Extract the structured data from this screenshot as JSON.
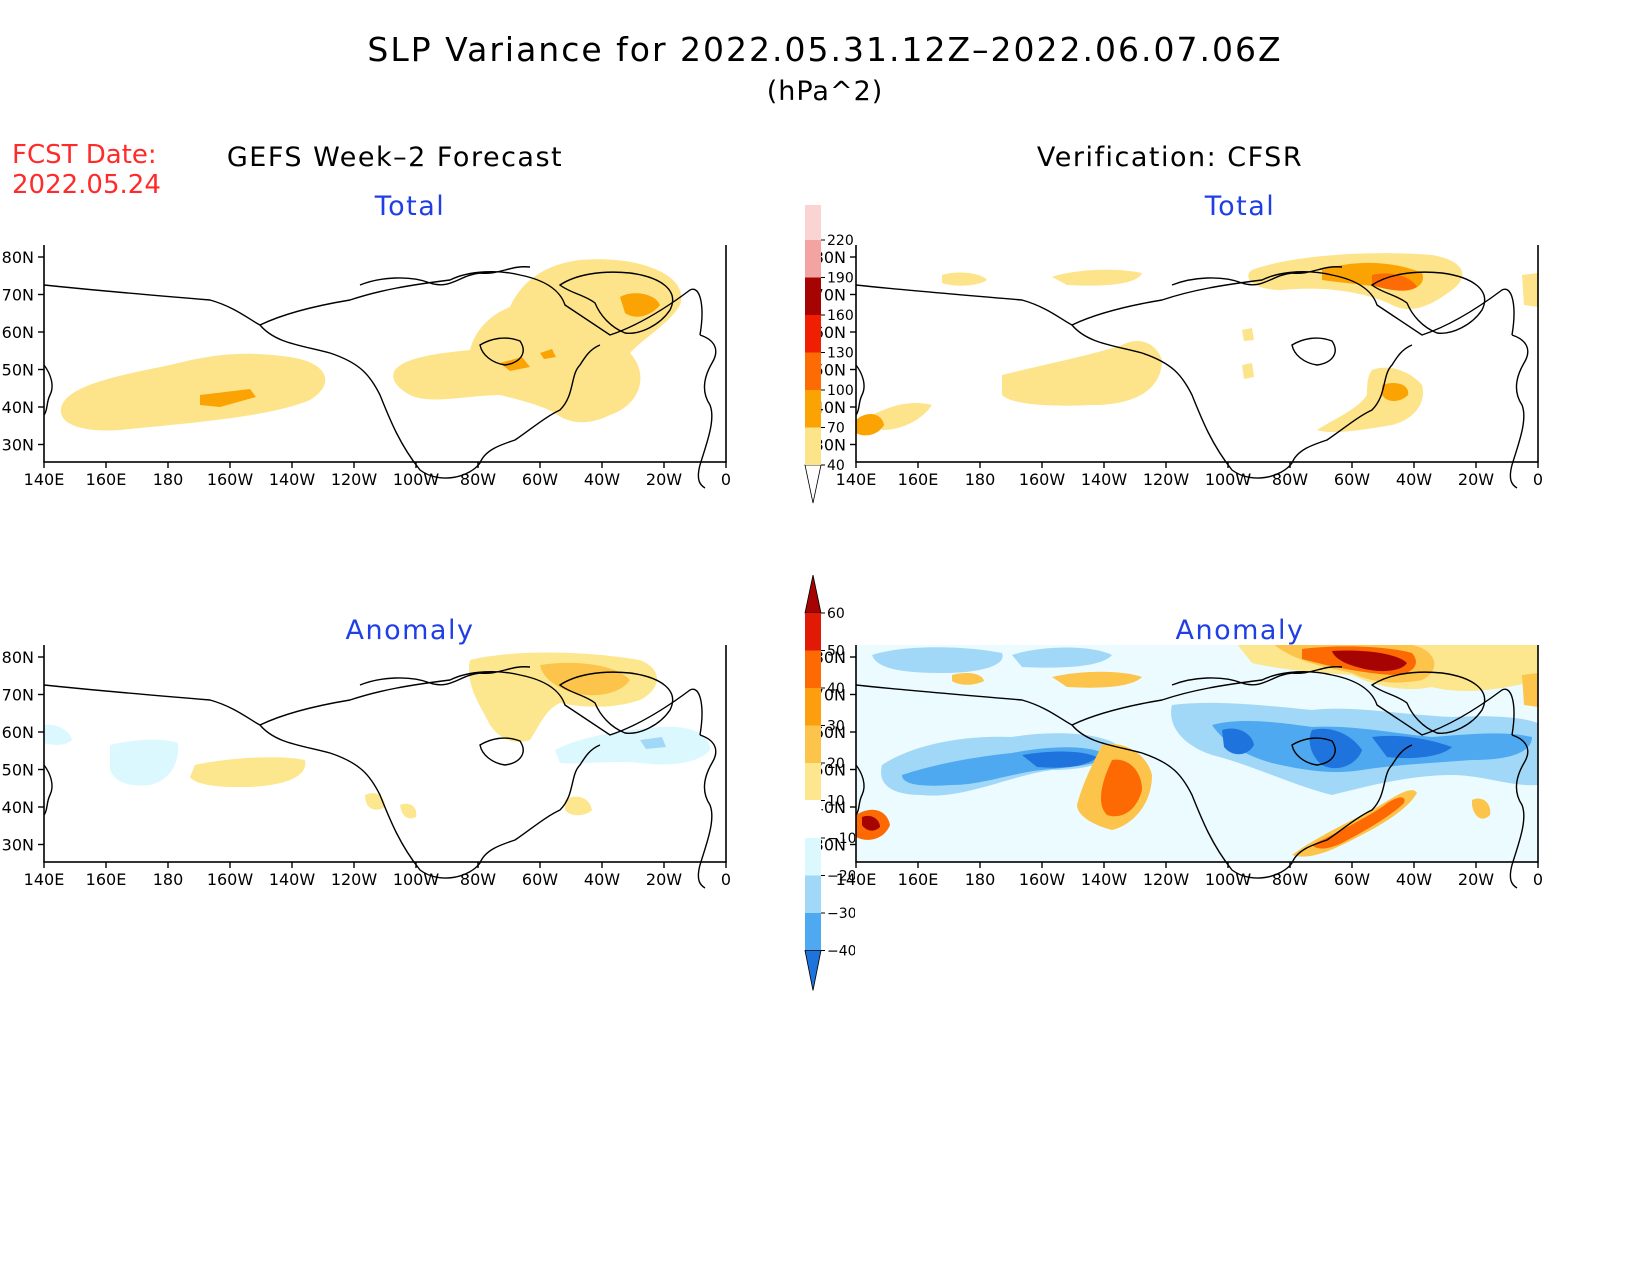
{
  "header": {
    "title": "SLP Variance for 2022.05.31.12Z–2022.06.07.06Z",
    "units": "(hPa^2)",
    "fcst_label": "FCST Date:",
    "fcst_date": "2022.05.24",
    "left_heading": "GEFS Week–2 Forecast",
    "right_heading": "Verification: CFSR"
  },
  "panels": {
    "forecast_total": "Total",
    "forecast_anomaly": "Anomaly",
    "verif_total": "Total",
    "verif_anomaly": "Anomaly"
  },
  "axes": {
    "lon_labels": [
      "140E",
      "160E",
      "180",
      "160W",
      "140W",
      "120W",
      "100W",
      "80W",
      "60W",
      "40W",
      "20W",
      "0"
    ],
    "lat_labels": [
      "80N",
      "70N",
      "60N",
      "50N",
      "40N",
      "30N"
    ]
  },
  "colorbars": {
    "total": {
      "levels": [
        "40",
        "70",
        "100",
        "130",
        "160",
        "190",
        "220"
      ],
      "colors": [
        "#fde48a",
        "#fca304",
        "#fd6c04",
        "#f01f04",
        "#a50403",
        "#f4a3a3",
        "#fbd3d3",
        "#fdecec"
      ]
    },
    "anomaly": {
      "levels": [
        "60",
        "50",
        "40",
        "30",
        "20",
        "10",
        "−10",
        "−20",
        "−30",
        "−40"
      ],
      "colors": [
        "#a50403",
        "#e11a05",
        "#fd6a03",
        "#fc9e0e",
        "#fcc44a",
        "#fde78e",
        "#ffffff",
        "#dcf8ff",
        "#a2d8f7",
        "#4ea9f0",
        "#1f73dc"
      ]
    }
  }
}
